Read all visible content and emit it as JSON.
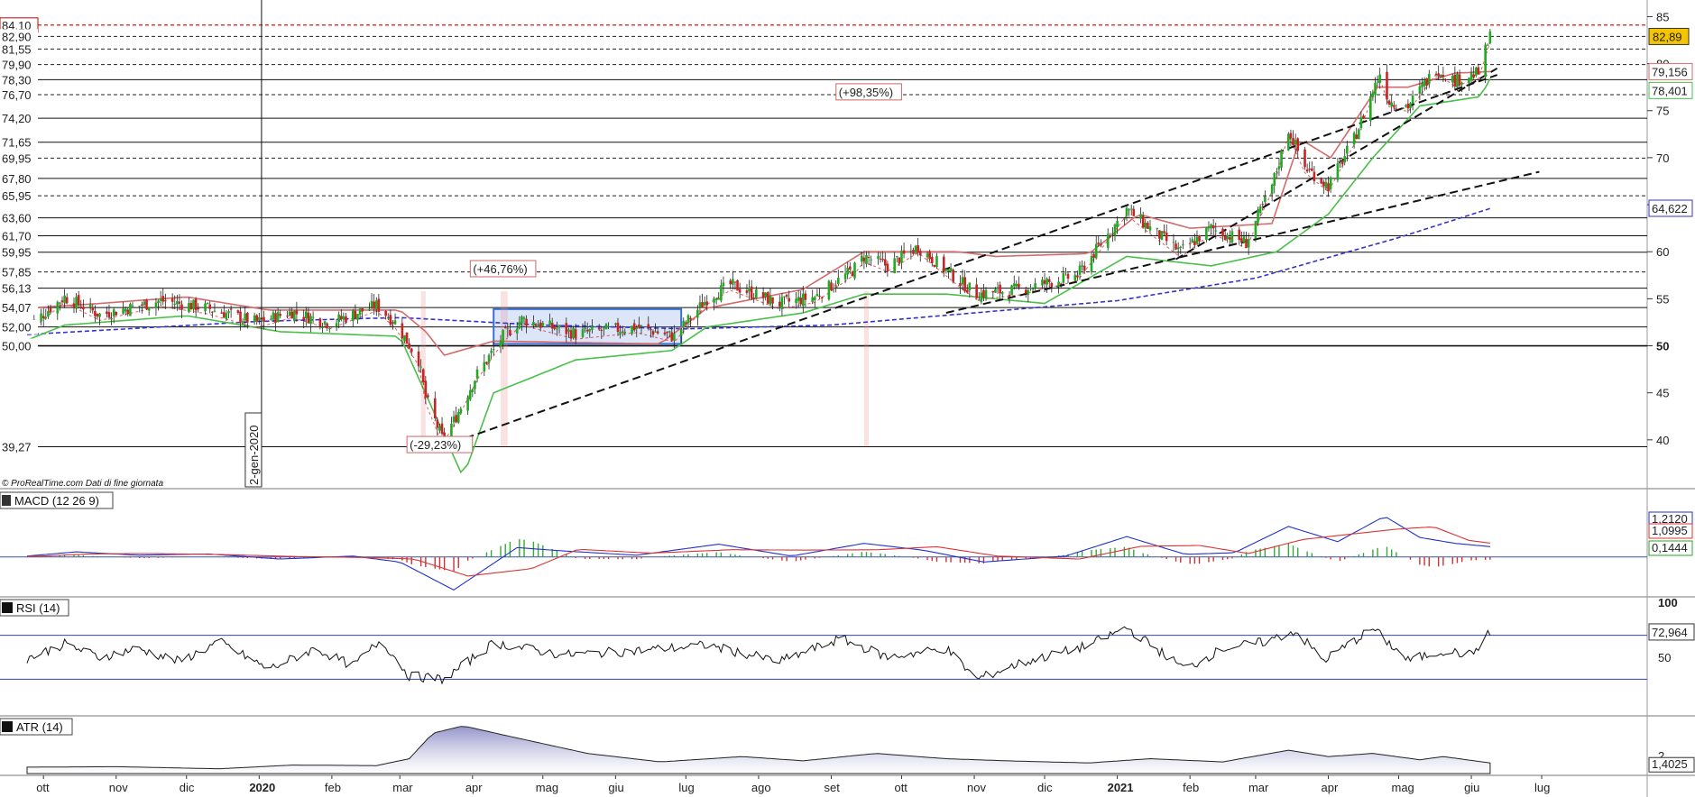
{
  "source_note": "© ProRealTime.com  Dati di fine giornata",
  "vline_date_label": "2-gen-2020",
  "chart_data": {
    "type": "candlestick",
    "price_axis": {
      "range": [
        35,
        86
      ],
      "ticks": [
        40,
        45,
        50,
        55,
        60,
        65,
        70,
        75,
        80,
        85
      ]
    },
    "current_price": "82,89",
    "indicator_values": {
      "red_line": "79,156",
      "green_line": "78,401",
      "blue_ma": "64,622"
    },
    "level_labels": [
      "84,10",
      "82,90",
      "81,55",
      "79,90",
      "78,30",
      "76,70",
      "74,20",
      "71,65",
      "69,95",
      "67,80",
      "65,95",
      "63,60",
      "61,70",
      "59,95",
      "57,85",
      "56,13",
      "54,07",
      "52,00",
      "50,00",
      "39,27"
    ],
    "levels_solid": [
      50.0,
      52.0,
      54.07,
      56.13,
      59.95,
      61.7,
      63.6,
      67.8,
      71.65,
      74.2,
      78.3,
      39.27
    ],
    "levels_dashed": [
      57.85,
      65.95,
      69.95,
      76.7,
      79.9,
      81.55,
      82.9
    ],
    "level_red_dashed": 84.1,
    "annotations": [
      {
        "text": "(-29,23%)",
        "date": "2020-03-18",
        "price": 39.5
      },
      {
        "text": "(+46,76%)",
        "date": "2020-04-14",
        "price": 58.2
      },
      {
        "text": "(+98,35%)",
        "date": "2020-09-17",
        "price": 77.0
      }
    ],
    "x_ticks": [
      "ott",
      "nov",
      "dic",
      "2020",
      "feb",
      "mar",
      "apr",
      "mag",
      "giu",
      "lug",
      "ago",
      "set",
      "ott",
      "nov",
      "dic",
      "2021",
      "feb",
      "mar",
      "apr",
      "mag",
      "giu",
      "lug"
    ],
    "x_tick_dates": [
      "2019-10-01",
      "2019-11-01",
      "2019-12-01",
      "2020-01-01",
      "2020-02-01",
      "2020-03-01",
      "2020-04-01",
      "2020-05-01",
      "2020-06-01",
      "2020-07-01",
      "2020-08-01",
      "2020-09-01",
      "2020-10-01",
      "2020-11-01",
      "2020-12-01",
      "2021-01-01",
      "2021-02-01",
      "2021-03-01",
      "2021-04-01",
      "2021-05-01",
      "2021-06-01",
      "2021-07-01"
    ],
    "x_range": [
      "2019-09-24",
      "2021-08-15"
    ],
    "vline_date": "2020-01-02",
    "trendlines": [
      {
        "from": {
          "date": "2020-03-19",
          "price": 39.3
        },
        "to": {
          "date": "2021-06-12",
          "price": 78.8
        }
      },
      {
        "from": {
          "date": "2020-10-20",
          "price": 53.5
        },
        "to": {
          "date": "2021-06-30",
          "price": 68.5
        }
      },
      {
        "from": {
          "date": "2021-01-26",
          "price": 59.2
        },
        "to": {
          "date": "2021-06-12",
          "price": 79.5
        }
      }
    ],
    "range_box": {
      "from": "2020-04-10",
      "to": "2020-06-29",
      "low": 50.2,
      "high": 53.9
    },
    "price_keypoints": [
      [
        "2019-09-24",
        52.0
      ],
      [
        "2019-10-10",
        55.2
      ],
      [
        "2019-10-25",
        53.3
      ],
      [
        "2019-11-20",
        54.8
      ],
      [
        "2019-12-10",
        54.0
      ],
      [
        "2019-12-31",
        52.5
      ],
      [
        "2020-01-15",
        53.6
      ],
      [
        "2020-01-31",
        52.4
      ],
      [
        "2020-02-20",
        54.3
      ],
      [
        "2020-02-28",
        52.5
      ],
      [
        "2020-03-09",
        48.5
      ],
      [
        "2020-03-12",
        44.5
      ],
      [
        "2020-03-19",
        40.2
      ],
      [
        "2020-03-24",
        42.0
      ],
      [
        "2020-04-03",
        47.0
      ],
      [
        "2020-04-14",
        51.0
      ],
      [
        "2020-04-22",
        52.8
      ],
      [
        "2020-05-15",
        51.3
      ],
      [
        "2020-06-10",
        52.0
      ],
      [
        "2020-06-26",
        51.0
      ],
      [
        "2020-07-10",
        55.0
      ],
      [
        "2020-07-20",
        56.5
      ],
      [
        "2020-08-10",
        54.5
      ],
      [
        "2020-08-25",
        55.2
      ],
      [
        "2020-09-10",
        58.0
      ],
      [
        "2020-09-15",
        59.5
      ],
      [
        "2020-09-25",
        58.5
      ],
      [
        "2020-10-08",
        60.5
      ],
      [
        "2020-10-25",
        57.0
      ],
      [
        "2020-11-02",
        55.5
      ],
      [
        "2020-11-20",
        56.0
      ],
      [
        "2020-12-15",
        57.5
      ],
      [
        "2021-01-05",
        64.5
      ],
      [
        "2021-01-15",
        62.5
      ],
      [
        "2021-01-28",
        60.0
      ],
      [
        "2021-02-10",
        62.5
      ],
      [
        "2021-02-25",
        61.0
      ],
      [
        "2021-03-08",
        67.0
      ],
      [
        "2021-03-15",
        73.0
      ],
      [
        "2021-03-22",
        69.0
      ],
      [
        "2021-04-01",
        67.0
      ],
      [
        "2021-04-12",
        72.0
      ],
      [
        "2021-04-23",
        79.0
      ],
      [
        "2021-04-27",
        76.0
      ],
      [
        "2021-05-05",
        75.5
      ],
      [
        "2021-05-17",
        79.5
      ],
      [
        "2021-05-25",
        78.2
      ],
      [
        "2021-06-04",
        79.0
      ],
      [
        "2021-06-09",
        82.9
      ]
    ],
    "macd": {
      "title": "MACD (12 26 9)",
      "values": [
        "1,2120",
        "1,0995",
        "0,1444"
      ],
      "zero_line": true,
      "keypoints": [
        [
          "2019-09-24",
          0.1
        ],
        [
          "2019-10-15",
          0.6
        ],
        [
          "2019-11-10",
          0.2
        ],
        [
          "2019-12-10",
          0.35
        ],
        [
          "2020-01-10",
          -0.25
        ],
        [
          "2020-02-10",
          0.1
        ],
        [
          "2020-03-01",
          -0.6
        ],
        [
          "2020-03-24",
          -3.9
        ],
        [
          "2020-04-20",
          1.1
        ],
        [
          "2020-05-10",
          0.7
        ],
        [
          "2020-06-10",
          0.2
        ],
        [
          "2020-07-15",
          1.5
        ],
        [
          "2020-08-15",
          0.1
        ],
        [
          "2020-09-15",
          1.6
        ],
        [
          "2020-10-10",
          0.8
        ],
        [
          "2020-11-05",
          -0.6
        ],
        [
          "2020-12-10",
          0.1
        ],
        [
          "2021-01-05",
          2.4
        ],
        [
          "2021-01-30",
          0.3
        ],
        [
          "2021-02-20",
          0.5
        ],
        [
          "2021-03-15",
          3.6
        ],
        [
          "2021-04-05",
          1.8
        ],
        [
          "2021-04-25",
          4.8
        ],
        [
          "2021-05-10",
          2.3
        ],
        [
          "2021-05-25",
          1.6
        ],
        [
          "2021-06-09",
          1.21
        ]
      ],
      "range": [
        -4.5,
        5.5
      ]
    },
    "rsi": {
      "title": "RSI (14)",
      "value": "72,964",
      "levels": [
        30,
        70
      ],
      "axis_top": "100",
      "axis_mid": "50",
      "keypoints": [
        [
          "2019-09-24",
          49
        ],
        [
          "2019-10-10",
          62
        ],
        [
          "2019-10-25",
          50
        ],
        [
          "2019-11-10",
          58
        ],
        [
          "2019-11-28",
          46
        ],
        [
          "2019-12-15",
          64
        ],
        [
          "2020-01-05",
          39
        ],
        [
          "2020-01-25",
          58
        ],
        [
          "2020-02-10",
          42
        ],
        [
          "2020-02-22",
          66
        ],
        [
          "2020-03-05",
          33
        ],
        [
          "2020-03-20",
          30
        ],
        [
          "2020-04-10",
          63
        ],
        [
          "2020-05-10",
          52
        ],
        [
          "2020-06-10",
          56
        ],
        [
          "2020-07-10",
          61
        ],
        [
          "2020-08-10",
          46
        ],
        [
          "2020-09-05",
          67
        ],
        [
          "2020-09-25",
          50
        ],
        [
          "2020-10-20",
          58
        ],
        [
          "2020-11-02",
          30
        ],
        [
          "2020-11-20",
          44
        ],
        [
          "2020-12-20",
          61
        ],
        [
          "2021-01-05",
          77
        ],
        [
          "2021-01-30",
          39
        ],
        [
          "2021-02-15",
          58
        ],
        [
          "2021-03-05",
          64
        ],
        [
          "2021-03-18",
          74
        ],
        [
          "2021-03-30",
          47
        ],
        [
          "2021-04-20",
          76
        ],
        [
          "2021-05-05",
          47
        ],
        [
          "2021-05-20",
          56
        ],
        [
          "2021-06-01",
          52
        ],
        [
          "2021-06-09",
          73
        ]
      ]
    },
    "atr": {
      "title": "ATR (14)",
      "value": "1,4025",
      "axis_label": "2",
      "range": [
        0.4,
        5.5
      ],
      "keypoints": [
        [
          "2019-09-24",
          1.0
        ],
        [
          "2019-11-01",
          1.05
        ],
        [
          "2019-12-15",
          0.85
        ],
        [
          "2020-01-15",
          1.2
        ],
        [
          "2020-02-20",
          1.15
        ],
        [
          "2020-03-05",
          1.8
        ],
        [
          "2020-03-15",
          4.2
        ],
        [
          "2020-03-28",
          4.9
        ],
        [
          "2020-04-15",
          4.0
        ],
        [
          "2020-05-20",
          2.3
        ],
        [
          "2020-06-20",
          1.5
        ],
        [
          "2020-07-25",
          2.0
        ],
        [
          "2020-08-20",
          1.6
        ],
        [
          "2020-09-20",
          2.3
        ],
        [
          "2020-10-20",
          1.8
        ],
        [
          "2020-11-15",
          1.6
        ],
        [
          "2020-12-20",
          1.4
        ],
        [
          "2021-01-15",
          1.8
        ],
        [
          "2021-02-15",
          1.5
        ],
        [
          "2021-03-15",
          2.6
        ],
        [
          "2021-04-01",
          2.0
        ],
        [
          "2021-04-20",
          2.3
        ],
        [
          "2021-05-10",
          1.7
        ],
        [
          "2021-05-20",
          2.0
        ],
        [
          "2021-06-09",
          1.4
        ]
      ]
    }
  },
  "colors": {
    "candle_up": "#22aa22",
    "candle_down": "#cc2222",
    "ma_blue": "#3333cc",
    "band_red": "#d46a6a",
    "band_green": "#4ac04a",
    "price_tag": "#f4c400",
    "atr_fill": "#8f8fc8"
  }
}
